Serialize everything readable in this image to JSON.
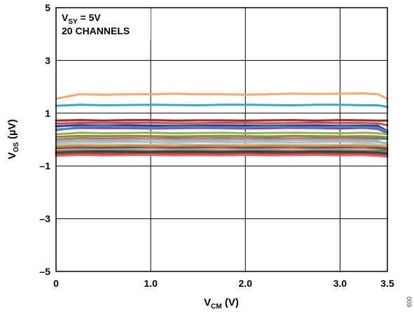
{
  "chart_data": {
    "type": "line",
    "xlabel": {
      "main": "V",
      "sub": "CM",
      "unit": " (V)"
    },
    "ylabel": {
      "main": "V",
      "sub": "OS",
      "unit": " (µV)"
    },
    "xlim": [
      0,
      3.5
    ],
    "ylim": [
      -5,
      5
    ],
    "x_ticks": [
      0,
      1,
      2,
      3,
      3.5
    ],
    "x_tick_labels": [
      "0",
      "1.0",
      "2.0",
      "3.0",
      "3.5"
    ],
    "y_ticks": [
      -5,
      -3,
      -1,
      1,
      3,
      5
    ],
    "y_tick_labels": [
      "–5",
      "–3",
      "–1",
      "1",
      "3",
      "5"
    ],
    "grid": true,
    "annotations": {
      "line1": {
        "main": "V",
        "sub": "SY",
        "rest": " = 5V"
      },
      "line2": "20 CHANNELS"
    },
    "side_note": "009",
    "x": [
      0,
      0.25,
      0.5,
      0.75,
      1.0,
      1.25,
      1.5,
      1.75,
      2.0,
      2.25,
      2.5,
      2.75,
      3.0,
      3.25,
      3.4,
      3.5
    ],
    "series": [
      {
        "color": "#f5a86a",
        "values": [
          1.55,
          1.72,
          1.7,
          1.72,
          1.72,
          1.74,
          1.72,
          1.72,
          1.7,
          1.72,
          1.74,
          1.73,
          1.74,
          1.75,
          1.72,
          1.55
        ]
      },
      {
        "color": "#3aa6c2",
        "values": [
          1.28,
          1.32,
          1.3,
          1.31,
          1.32,
          1.31,
          1.3,
          1.32,
          1.32,
          1.31,
          1.3,
          1.32,
          1.32,
          1.3,
          1.3,
          1.24
        ]
      },
      {
        "color": "#9b2a2a",
        "values": [
          0.72,
          0.74,
          0.72,
          0.74,
          0.74,
          0.72,
          0.73,
          0.73,
          0.72,
          0.73,
          0.74,
          0.72,
          0.74,
          0.73,
          0.72,
          0.72
        ]
      },
      {
        "color": "#c05252",
        "values": [
          0.6,
          0.64,
          0.63,
          0.64,
          0.64,
          0.62,
          0.62,
          0.64,
          0.63,
          0.62,
          0.63,
          0.64,
          0.63,
          0.63,
          0.61,
          0.55
        ]
      },
      {
        "color": "#283f82",
        "values": [
          0.5,
          0.55,
          0.53,
          0.55,
          0.53,
          0.52,
          0.53,
          0.54,
          0.53,
          0.52,
          0.53,
          0.54,
          0.52,
          0.53,
          0.52,
          0.32
        ]
      },
      {
        "color": "#7a4a9c",
        "values": [
          0.38,
          0.44,
          0.43,
          0.43,
          0.42,
          0.43,
          0.44,
          0.43,
          0.42,
          0.43,
          0.44,
          0.43,
          0.42,
          0.44,
          0.4,
          0.25
        ]
      },
      {
        "color": "#5b7ec0",
        "values": [
          0.35,
          0.48,
          0.5,
          0.47,
          0.45,
          0.47,
          0.48,
          0.46,
          0.46,
          0.48,
          0.47,
          0.46,
          0.48,
          0.47,
          0.45,
          0.3
        ]
      },
      {
        "color": "#8bb35a",
        "values": [
          0.2,
          0.26,
          0.24,
          0.25,
          0.26,
          0.24,
          0.25,
          0.26,
          0.24,
          0.25,
          0.26,
          0.25,
          0.24,
          0.26,
          0.24,
          0.2
        ]
      },
      {
        "color": "#b57a2f",
        "values": [
          0.1,
          0.14,
          0.13,
          0.14,
          0.13,
          0.12,
          0.13,
          0.14,
          0.13,
          0.12,
          0.14,
          0.13,
          0.12,
          0.13,
          0.12,
          0.08
        ]
      },
      {
        "color": "#2f9c82",
        "values": [
          0.0,
          0.05,
          0.04,
          0.05,
          0.04,
          0.05,
          0.04,
          0.05,
          0.04,
          0.05,
          0.04,
          0.05,
          0.04,
          0.05,
          0.04,
          0.02
        ]
      },
      {
        "color": "#f08a8a",
        "values": [
          -0.05,
          0.0,
          -0.02,
          0.0,
          0.01,
          -0.02,
          0.0,
          -0.01,
          0.0,
          -0.02,
          0.0,
          -0.01,
          0.0,
          -0.02,
          -0.05,
          -0.2
        ]
      },
      {
        "color": "#8fc0e8",
        "values": [
          -0.12,
          -0.08,
          -0.1,
          -0.08,
          -0.09,
          -0.1,
          -0.08,
          -0.09,
          -0.1,
          -0.08,
          -0.1,
          -0.09,
          -0.08,
          -0.1,
          -0.1,
          -0.12
        ]
      },
      {
        "color": "#c9c46a",
        "values": [
          -0.2,
          -0.18,
          -0.2,
          -0.19,
          -0.2,
          -0.18,
          -0.2,
          -0.19,
          -0.2,
          -0.18,
          -0.2,
          -0.19,
          -0.2,
          -0.18,
          -0.2,
          -0.22
        ]
      },
      {
        "color": "#d2704f",
        "values": [
          -0.28,
          -0.25,
          -0.27,
          -0.25,
          -0.26,
          -0.27,
          -0.25,
          -0.26,
          -0.27,
          -0.25,
          -0.26,
          -0.27,
          -0.25,
          -0.26,
          -0.27,
          -0.3
        ]
      },
      {
        "color": "#4a5a6a",
        "values": [
          -0.35,
          -0.32,
          -0.33,
          -0.31,
          -0.34,
          -0.33,
          -0.32,
          -0.34,
          -0.33,
          -0.32,
          -0.34,
          -0.33,
          -0.32,
          -0.34,
          -0.33,
          -0.35
        ]
      },
      {
        "color": "#e0a8a8",
        "values": [
          -0.4,
          -0.38,
          -0.39,
          -0.38,
          -0.37,
          -0.39,
          -0.38,
          -0.37,
          -0.39,
          -0.38,
          -0.37,
          -0.39,
          -0.38,
          -0.37,
          -0.4,
          -0.45
        ]
      },
      {
        "color": "#6a8a3a",
        "values": [
          -0.45,
          -0.42,
          -0.43,
          -0.42,
          -0.44,
          -0.43,
          -0.42,
          -0.44,
          -0.43,
          -0.42,
          -0.44,
          -0.43,
          -0.42,
          -0.44,
          -0.43,
          -0.42
        ]
      },
      {
        "color": "#3a3a4a",
        "values": [
          -0.5,
          -0.47,
          -0.45,
          -0.47,
          -0.48,
          -0.46,
          -0.47,
          -0.48,
          -0.46,
          -0.47,
          -0.48,
          -0.46,
          -0.47,
          -0.48,
          -0.5,
          -0.52
        ]
      },
      {
        "color": "#b03a3a",
        "values": [
          -0.55,
          -0.52,
          -0.53,
          -0.55,
          -0.54,
          -0.53,
          -0.55,
          -0.54,
          -0.53,
          -0.55,
          -0.54,
          -0.53,
          -0.55,
          -0.54,
          -0.56,
          -0.6
        ]
      },
      {
        "color": "#d86a6a",
        "values": [
          -0.62,
          -0.58,
          -0.6,
          -0.59,
          -0.58,
          -0.6,
          -0.59,
          -0.6,
          -0.58,
          -0.6,
          -0.59,
          -0.58,
          -0.6,
          -0.59,
          -0.62,
          -0.65
        ]
      }
    ]
  }
}
